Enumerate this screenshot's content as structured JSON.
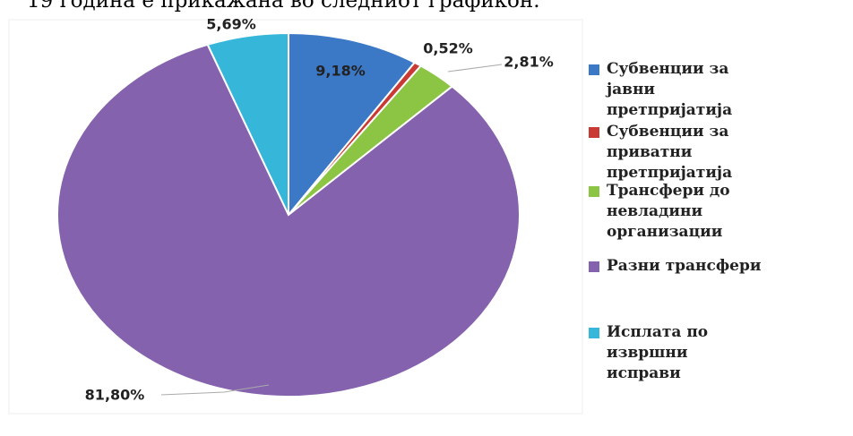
{
  "caption": "19 година е прикажана во следниот графикон.",
  "chart_data": {
    "type": "pie",
    "categories": [
      "Субвенции за јавни претпријатија",
      "Субвенции за приватни претпријатија",
      "Трансфери до невладини организации",
      "Разни трансфери",
      "Исплата по извршни исправи"
    ],
    "values": [
      9.18,
      0.52,
      2.81,
      81.8,
      5.69
    ],
    "value_labels": [
      "9,18%",
      "0,52%",
      "2,81%",
      "81,80%",
      "5,69%"
    ],
    "colors": [
      "#3b78c6",
      "#c93a35",
      "#8cc443",
      "#8462ad",
      "#36b6d8"
    ],
    "legend": "right"
  }
}
